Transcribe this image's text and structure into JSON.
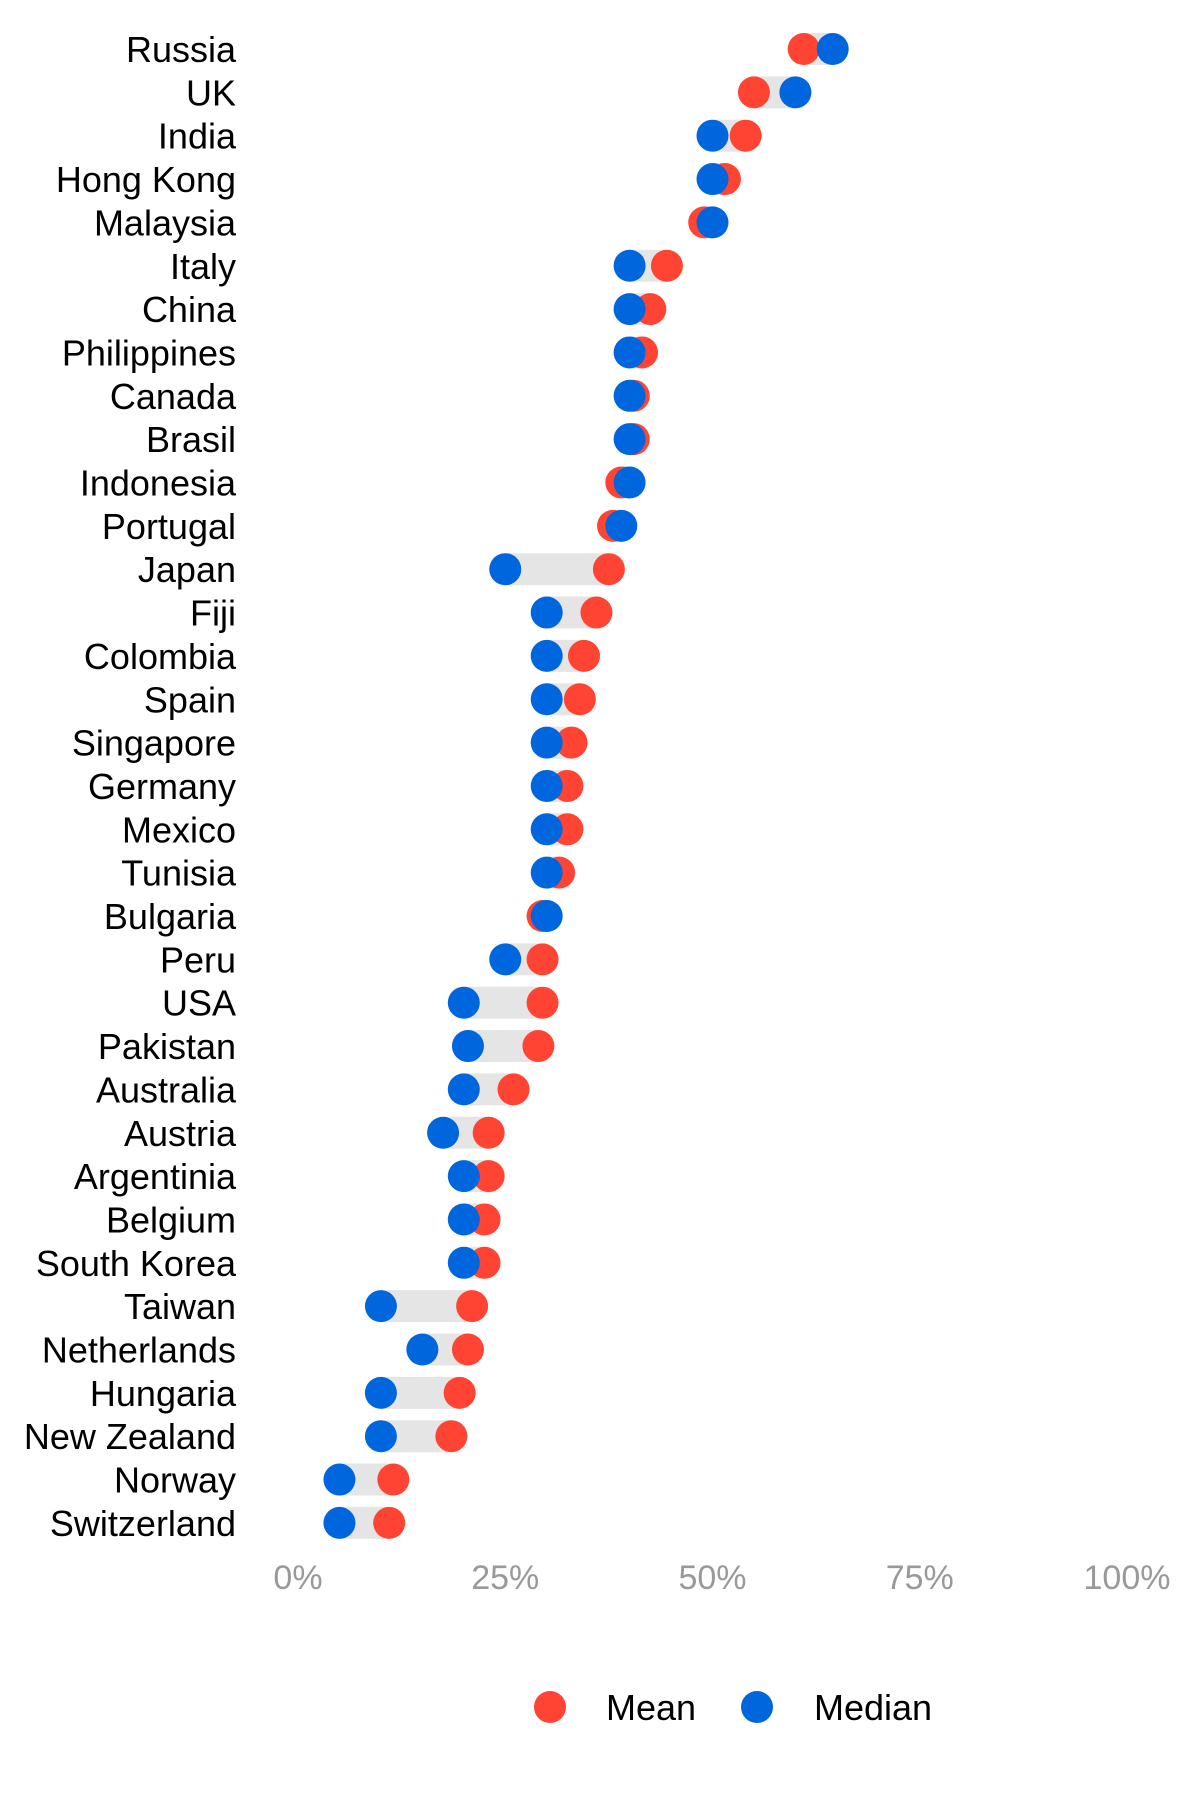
{
  "chart_data": {
    "type": "dumbbell",
    "xlim": [
      0,
      100
    ],
    "x_ticks": [
      0,
      25,
      50,
      75,
      100
    ],
    "x_tick_labels": [
      "0%",
      "25%",
      "50%",
      "75%",
      "100%"
    ],
    "colors": {
      "Mean": "#ff4433",
      "Median": "#0066dd",
      "connector": "#e5e5e5"
    },
    "legend": {
      "placement": "bottom",
      "entries": [
        "Mean",
        "Median"
      ]
    },
    "categories": [
      "Russia",
      "UK",
      "India",
      "Hong Kong",
      "Malaysia",
      "Italy",
      "China",
      "Philippines",
      "Canada",
      "Brasil",
      "Indonesia",
      "Portugal",
      "Japan",
      "Fiji",
      "Colombia",
      "Spain",
      "Singapore",
      "Germany",
      "Mexico",
      "Tunisia",
      "Bulgaria",
      "Peru",
      "USA",
      "Pakistan",
      "Australia",
      "Austria",
      "Argentinia",
      "Belgium",
      "South Korea",
      "Taiwan",
      "Netherlands",
      "Hungaria",
      "New Zealand",
      "Norway",
      "Switzerland"
    ],
    "series": [
      {
        "name": "Mean",
        "values": [
          61,
          55,
          54,
          51.5,
          49,
          44.5,
          42.5,
          41.5,
          40.5,
          40.5,
          39,
          38,
          37.5,
          36,
          34.5,
          34,
          33,
          32.5,
          32.5,
          31.5,
          29.5,
          29.5,
          29.5,
          29,
          26,
          23,
          23,
          22.5,
          22.5,
          21,
          20.5,
          19.5,
          18.5,
          11.5,
          11
        ]
      },
      {
        "name": "Median",
        "values": [
          64.5,
          60,
          50,
          50,
          50,
          40,
          40,
          40,
          40,
          40,
          40,
          39,
          25,
          30,
          30,
          30,
          30,
          30,
          30,
          30,
          30,
          25,
          20,
          20.5,
          20,
          17.5,
          20,
          20,
          20,
          10,
          15,
          10,
          10,
          5,
          5
        ]
      }
    ]
  }
}
